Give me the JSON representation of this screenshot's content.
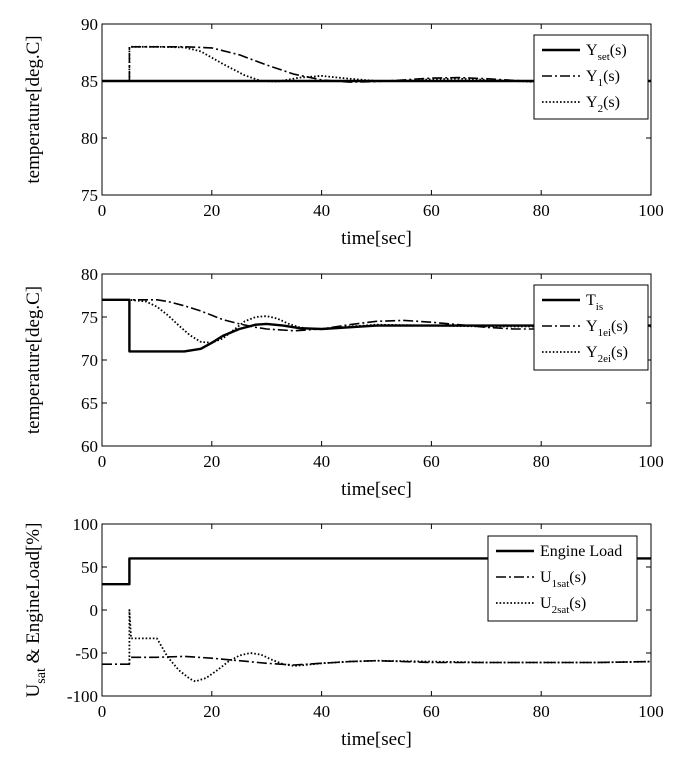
{
  "chart_data": [
    {
      "type": "line",
      "xlabel": "time[sec]",
      "ylabel": "temperature[deg.C]",
      "xlim": [
        0,
        100
      ],
      "ylim": [
        75,
        90
      ],
      "xticks": [
        "0",
        "20",
        "40",
        "60",
        "80",
        "100"
      ],
      "yticks": [
        "75",
        "80",
        "85",
        "90"
      ],
      "legend_position": "top-right",
      "series": [
        {
          "name": "Y",
          "sub": "set",
          "suffix": "(s)",
          "style": "solid",
          "x": [
            0,
            100
          ],
          "y": [
            85,
            85
          ]
        },
        {
          "name": "Y",
          "sub": "1",
          "suffix": "(s)",
          "style": "dashdot",
          "x": [
            5,
            5,
            10,
            15,
            20,
            25,
            30,
            35,
            40,
            45,
            50,
            55,
            60,
            65,
            70,
            75,
            80,
            85,
            90,
            95,
            100
          ],
          "y": [
            85,
            88,
            88,
            88,
            87.9,
            87.3,
            86.4,
            85.6,
            85.1,
            84.9,
            84.95,
            85.1,
            85.25,
            85.3,
            85.2,
            85.05,
            84.9,
            84.85,
            84.9,
            84.95,
            85
          ]
        },
        {
          "name": "Y",
          "sub": "2",
          "suffix": "(s)",
          "style": "dotted",
          "x": [
            5,
            5,
            10,
            15,
            18,
            22,
            26,
            29,
            32,
            36,
            40,
            45,
            50,
            55,
            60,
            65,
            70,
            75,
            80,
            85,
            90,
            95,
            100
          ],
          "y": [
            85,
            88,
            88,
            87.95,
            87.6,
            86.5,
            85.5,
            85.0,
            84.95,
            85.3,
            85.45,
            85.2,
            85.0,
            85.0,
            85.15,
            85.2,
            85.1,
            85.0,
            84.9,
            84.9,
            84.95,
            85,
            85
          ]
        }
      ]
    },
    {
      "type": "line",
      "xlabel": "time[sec]",
      "ylabel": "temperature[deg.C]",
      "xlim": [
        0,
        100
      ],
      "ylim": [
        60,
        80
      ],
      "xticks": [
        "0",
        "20",
        "40",
        "60",
        "80",
        "100"
      ],
      "yticks": [
        "60",
        "65",
        "70",
        "75",
        "80"
      ],
      "legend_position": "top-right",
      "series": [
        {
          "name": "T",
          "sub": "is",
          "suffix": "",
          "style": "solid",
          "x": [
            0,
            5,
            5,
            10,
            15,
            18,
            20,
            22,
            25,
            28,
            30,
            33,
            36,
            40,
            45,
            50,
            55,
            60,
            70,
            80,
            90,
            100
          ],
          "y": [
            77,
            77,
            71,
            71,
            71,
            71.3,
            72,
            72.8,
            73.6,
            74.1,
            74.2,
            74.0,
            73.7,
            73.6,
            73.8,
            74.0,
            74.0,
            74.0,
            74.0,
            74.0,
            74.0,
            74.0
          ]
        },
        {
          "name": "Y",
          "sub": "1ei",
          "suffix": "(s)",
          "style": "dashdot",
          "x": [
            0,
            5,
            10,
            12,
            15,
            18,
            20,
            22,
            25,
            28,
            30,
            35,
            40,
            45,
            50,
            55,
            60,
            65,
            70,
            75,
            80,
            90,
            100
          ],
          "y": [
            77,
            77,
            77,
            76.8,
            76.3,
            75.7,
            75.2,
            74.7,
            74.2,
            73.8,
            73.6,
            73.4,
            73.6,
            74.1,
            74.5,
            74.6,
            74.4,
            74.1,
            73.8,
            73.6,
            73.6,
            73.7,
            73.9
          ]
        },
        {
          "name": "Y",
          "sub": "2ei",
          "suffix": "(s)",
          "style": "dotted",
          "x": [
            0,
            5,
            8,
            10,
            12,
            14,
            16,
            18,
            20,
            22,
            24,
            26,
            28,
            30,
            32,
            34,
            36,
            38,
            40,
            45,
            50,
            60,
            70,
            80,
            90,
            100
          ],
          "y": [
            77,
            77,
            76.8,
            76.2,
            75.2,
            74.0,
            72.9,
            72.1,
            72.0,
            72.5,
            73.5,
            74.5,
            75.0,
            75.1,
            74.8,
            74.2,
            73.8,
            73.6,
            73.6,
            73.9,
            74.1,
            74.0,
            73.9,
            73.9,
            74.0,
            74.0
          ]
        }
      ]
    },
    {
      "type": "line",
      "xlabel": "time[sec]",
      "ylabel": "U_sat & EngineLoad[%]",
      "ylabel_main": "U",
      "ylabel_sub": "sat",
      "ylabel_rest": " & EngineLoad[%]",
      "xlim": [
        0,
        100
      ],
      "ylim": [
        -100,
        100
      ],
      "xticks": [
        "0",
        "20",
        "40",
        "60",
        "80",
        "100"
      ],
      "yticks": [
        "-100",
        "-50",
        "0",
        "50",
        "100"
      ],
      "legend_position": "top-right",
      "series": [
        {
          "name": "Engine Load",
          "sub": "",
          "suffix": "",
          "style": "solid",
          "x": [
            0,
            5,
            5,
            100
          ],
          "y": [
            30,
            30,
            60,
            60
          ]
        },
        {
          "name": "U",
          "sub": "1sat",
          "suffix": "(s)",
          "style": "dashdot",
          "x": [
            0,
            5,
            5,
            10,
            15,
            20,
            25,
            30,
            35,
            40,
            45,
            50,
            55,
            60,
            70,
            80,
            90,
            100
          ],
          "y": [
            -63,
            -63,
            -55,
            -55,
            -54,
            -56,
            -59,
            -62,
            -64,
            -62,
            -60,
            -59,
            -60,
            -61,
            -61,
            -61,
            -61,
            -60
          ]
        },
        {
          "name": "U",
          "sub": "2sat",
          "suffix": "(s)",
          "style": "dotted",
          "x": [
            5,
            5,
            5.3,
            6,
            10,
            12,
            14,
            16,
            17,
            19,
            21,
            23,
            25,
            27,
            29,
            31,
            33,
            35,
            37,
            40,
            45,
            50,
            60,
            70,
            80,
            90,
            100
          ],
          "y": [
            -63,
            0,
            -33,
            -33,
            -33,
            -55,
            -70,
            -80,
            -83,
            -79,
            -70,
            -60,
            -53,
            -50,
            -52,
            -58,
            -63,
            -65,
            -64,
            -62,
            -60,
            -59,
            -60,
            -61,
            -61,
            -61,
            -60
          ]
        }
      ]
    }
  ]
}
